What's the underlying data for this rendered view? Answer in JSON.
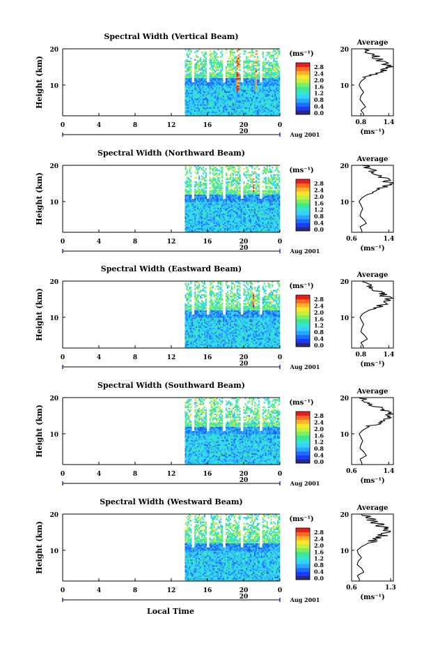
{
  "figure": {
    "bottom_label": "Local Time",
    "date_label": "Aug 2001",
    "day_label": "20"
  },
  "colorbar": {
    "unit": "(ms⁻¹)",
    "ticks": [
      "2.8",
      "2.4",
      "2.0",
      "1.6",
      "1.2",
      "0.8",
      "0.4",
      "0.0"
    ],
    "colors": [
      "#2a2a7a",
      "#1a3cff",
      "#1f6dff",
      "#2aa6ff",
      "#36d2ff",
      "#34e6d0",
      "#3fe890",
      "#7df060",
      "#c6f040",
      "#ffe62e",
      "#ffb32a",
      "#ff6a20",
      "#e61e1e"
    ]
  },
  "chart_data": [
    {
      "type": "heatmap",
      "title": "Spectral Width (Vertical Beam)",
      "ylabel": "Height (km)",
      "yticks": [
        "20",
        "10"
      ],
      "xticks": [
        "0",
        "4",
        "8",
        "12",
        "16",
        "20",
        "0"
      ],
      "xlim": [
        0,
        24
      ],
      "ylim": [
        1.5,
        20
      ],
      "data_start_hour": 13.5,
      "colorbar_range": [
        0.0,
        2.8
      ],
      "average_profile": {
        "title": "Average",
        "xlabel": "(ms⁻¹)",
        "xticks": [
          "0.8",
          "1.4"
        ],
        "xlim": [
          0.6,
          1.5
        ],
        "yticks": [
          "20",
          "10"
        ],
        "height": [
          2,
          3,
          4,
          5,
          6,
          7,
          8,
          9,
          10,
          11,
          12,
          13,
          14,
          15,
          16,
          17,
          18,
          19,
          20
        ],
        "width": [
          0.86,
          0.8,
          0.9,
          0.84,
          0.78,
          0.8,
          0.86,
          0.8,
          0.76,
          0.8,
          0.9,
          1.05,
          1.3,
          1.45,
          1.3,
          1.2,
          1.1,
          0.95,
          0.82
        ]
      }
    },
    {
      "type": "heatmap",
      "title": "Spectral Width (Northward Beam)",
      "ylabel": "Height (km)",
      "yticks": [
        "20",
        "10"
      ],
      "xticks": [
        "0",
        "4",
        "8",
        "12",
        "16",
        "20",
        "0"
      ],
      "xlim": [
        0,
        24
      ],
      "ylim": [
        1.5,
        20
      ],
      "data_start_hour": 13.5,
      "colorbar_range": [
        0.0,
        2.8
      ],
      "average_profile": {
        "title": "Average",
        "xlabel": "(ms⁻¹)",
        "xticks": [
          "0.6",
          "1.4"
        ],
        "xlim": [
          0.6,
          1.5
        ],
        "yticks": [
          "20",
          "10"
        ],
        "height": [
          2,
          3,
          4,
          5,
          6,
          7,
          8,
          9,
          10,
          11,
          12,
          13,
          14,
          15,
          16,
          17,
          18,
          19,
          20
        ],
        "width": [
          0.82,
          0.78,
          0.92,
          0.86,
          0.78,
          0.8,
          0.84,
          0.8,
          0.76,
          0.82,
          0.95,
          1.15,
          1.3,
          1.4,
          1.35,
          1.25,
          1.1,
          1.0,
          0.9
        ]
      }
    },
    {
      "type": "heatmap",
      "title": "Spectral Width (Eastward Beam)",
      "ylabel": "Height (km)",
      "yticks": [
        "20",
        "10"
      ],
      "xticks": [
        "0",
        "4",
        "8",
        "12",
        "16",
        "20",
        "0"
      ],
      "xlim": [
        0,
        24
      ],
      "ylim": [
        1.5,
        20
      ],
      "data_start_hour": 13.5,
      "colorbar_range": [
        0.0,
        2.8
      ],
      "average_profile": {
        "title": "Average",
        "xlabel": "(ms⁻¹)",
        "xticks": [
          "0.8",
          "1.4"
        ],
        "xlim": [
          0.6,
          1.5
        ],
        "yticks": [
          "20",
          "10"
        ],
        "height": [
          2,
          3,
          4,
          5,
          6,
          7,
          8,
          9,
          10,
          11,
          12,
          13,
          14,
          15,
          16,
          17,
          18,
          19,
          20
        ],
        "width": [
          0.85,
          0.8,
          0.94,
          0.88,
          0.8,
          0.82,
          0.86,
          0.82,
          0.78,
          0.84,
          0.98,
          1.2,
          1.38,
          1.42,
          1.3,
          1.25,
          1.05,
          0.95,
          0.85
        ]
      }
    },
    {
      "type": "heatmap",
      "title": "Spectral Width (Southward Beam)",
      "ylabel": "Height (km)",
      "yticks": [
        "20",
        "10"
      ],
      "xticks": [
        "0",
        "4",
        "8",
        "12",
        "16",
        "20",
        "0"
      ],
      "xlim": [
        0,
        24
      ],
      "ylim": [
        1.5,
        20
      ],
      "data_start_hour": 13.5,
      "colorbar_range": [
        0.0,
        2.8
      ],
      "average_profile": {
        "title": "Average",
        "xlabel": "(ms⁻¹)",
        "xticks": [
          "0.6",
          "1.4"
        ],
        "xlim": [
          0.6,
          1.5
        ],
        "yticks": [
          "20",
          "10"
        ],
        "height": [
          2,
          3,
          4,
          5,
          6,
          7,
          8,
          9,
          10,
          11,
          12,
          13,
          14,
          15,
          16,
          17,
          18,
          19,
          20
        ],
        "width": [
          0.82,
          0.78,
          0.92,
          0.86,
          0.78,
          0.8,
          0.84,
          0.8,
          0.76,
          0.84,
          0.98,
          1.18,
          1.32,
          1.45,
          1.38,
          1.22,
          1.05,
          0.92,
          0.8
        ]
      }
    },
    {
      "type": "heatmap",
      "title": "Spectral Width (Westward Beam)",
      "ylabel": "Height (km)",
      "yticks": [
        "20",
        "10"
      ],
      "xticks": [
        "0",
        "4",
        "8",
        "12",
        "16",
        "20",
        "0"
      ],
      "xlim": [
        0,
        24
      ],
      "ylim": [
        1.5,
        20
      ],
      "data_start_hour": 13.5,
      "colorbar_range": [
        0.0,
        2.8
      ],
      "average_profile": {
        "title": "Average",
        "xlabel": "(ms⁻¹)",
        "xticks": [
          "0.6",
          "1.3"
        ],
        "xlim": [
          0.6,
          1.35
        ],
        "yticks": [
          "20",
          "10"
        ],
        "height": [
          2,
          3,
          4,
          5,
          6,
          7,
          8,
          9,
          10,
          11,
          12,
          13,
          14,
          15,
          16,
          17,
          18,
          19,
          20
        ],
        "width": [
          0.74,
          0.7,
          0.82,
          0.78,
          0.7,
          0.72,
          0.78,
          0.72,
          0.7,
          0.78,
          0.9,
          1.05,
          1.15,
          1.22,
          1.18,
          1.1,
          1.0,
          0.92,
          0.8
        ]
      }
    }
  ]
}
